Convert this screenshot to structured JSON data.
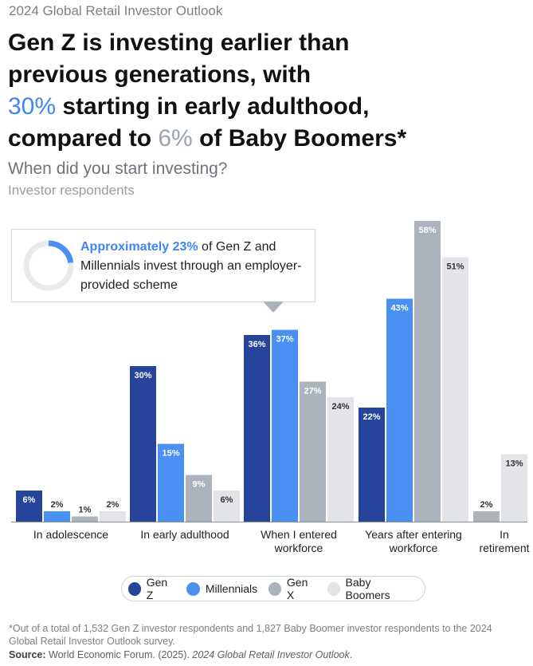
{
  "header": {
    "eyebrow": "2024 Global Retail Investor Outlook",
    "headline_line1": "Gen Z is investing earlier than",
    "headline_line2": "previous generations, with",
    "headline_highlight1": "30%",
    "headline_line3_rest": " starting in early adulthood,",
    "headline_line4_pre": "compared to ",
    "headline_highlight2": "6%",
    "headline_line4_post": " of Baby Boomers*",
    "question": "When did you start investing?",
    "respondents": "Investor respondents"
  },
  "callout": {
    "highlight": "Approximately 23%",
    "text_rest": " of Gen Z and Millennials invest through an employer-provided scheme",
    "ring_fraction": 0.23
  },
  "colors": {
    "gen_z": "#25449a",
    "millennials": "#4a90f3",
    "gen_x": "#adb3bc",
    "baby_boomers": "#e2e4e8"
  },
  "chart_data": {
    "type": "bar",
    "categories": [
      [
        "In adolescence"
      ],
      [
        "In early adulthood"
      ],
      [
        "When I entered",
        "workforce"
      ],
      [
        "Years after entering",
        "workforce"
      ],
      [
        "In",
        "retirement"
      ]
    ],
    "series": [
      {
        "name": "Gen Z",
        "color": "#25449a",
        "label_color": "#ffffff",
        "values": [
          6,
          30,
          36,
          22,
          null
        ]
      },
      {
        "name": "Millennials",
        "color": "#4a90f3",
        "label_color": "#ffffff",
        "values": [
          2,
          15,
          37,
          43,
          null
        ]
      },
      {
        "name": "Gen X",
        "color": "#adb3bc",
        "label_color": "#ffffff",
        "values": [
          1,
          9,
          27,
          58,
          2
        ]
      },
      {
        "name": "Baby Boomers",
        "color": "#e2e4e8",
        "label_color": "#333333",
        "values": [
          2,
          6,
          24,
          51,
          13
        ]
      }
    ],
    "value_suffix": "%",
    "ylim": [
      0,
      60
    ]
  },
  "legend": {
    "items": [
      {
        "label": "Gen Z",
        "color": "#25449a"
      },
      {
        "label": "Millennials",
        "color": "#4a90f3"
      },
      {
        "label": "Gen X",
        "color": "#adb3bc"
      },
      {
        "label": "Baby Boomers",
        "color": "#e2e4e8"
      }
    ]
  },
  "footer": {
    "footnote": "*Out of a total of 1,532 Gen Z investor respondents and 1,827 Baby Boomer investor respondents to the 2024 Global Retail Investor Outlook survey.",
    "source_label": "Source:",
    "source_text": " World Economic Forum. (2025). ",
    "source_title": "2024 Global Retail Investor Outlook",
    "source_end": "."
  }
}
